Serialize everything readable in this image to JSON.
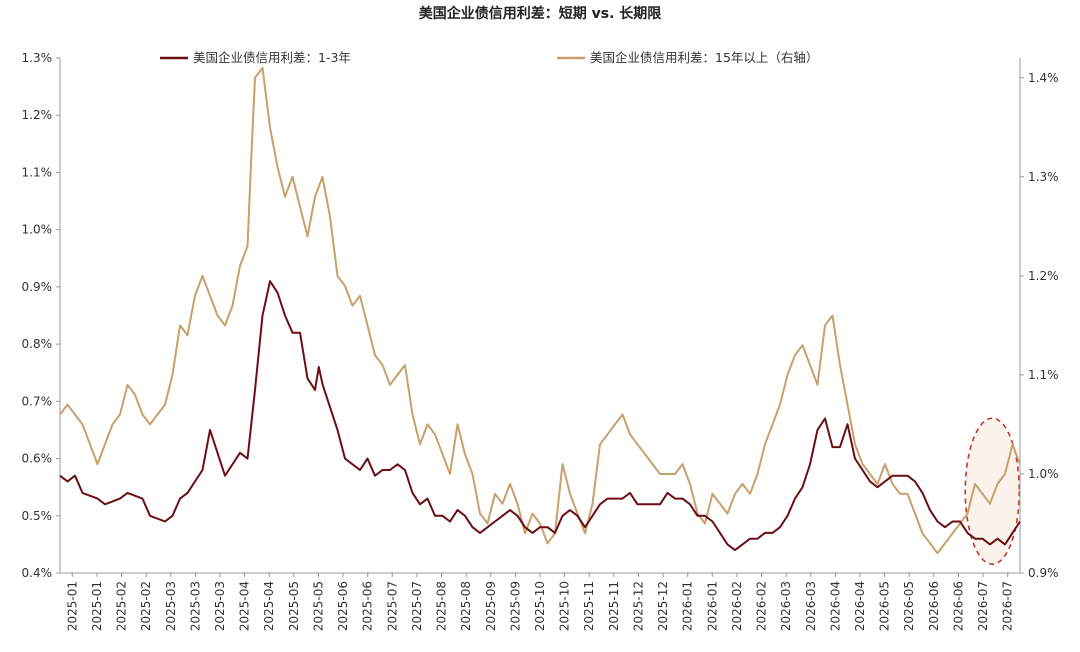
{
  "chart_data": {
    "type": "line",
    "title": "美国企业债信用利差：短期 vs. 长期限",
    "y_left": {
      "ticks": [
        "0.4%",
        "0.5%",
        "0.6%",
        "0.7%",
        "0.8%",
        "0.9%",
        "1.0%",
        "1.1%",
        "1.2%",
        "1.3%"
      ],
      "lim": [
        0.4,
        1.3
      ]
    },
    "y_right": {
      "ticks": [
        "0.9%",
        "1.0%",
        "1.1%",
        "1.2%",
        "1.3%",
        "1.4%"
      ],
      "lim": [
        0.9,
        1.42
      ]
    },
    "x_ticks": [
      "2025-01",
      "2025-01",
      "2025-02",
      "2025-02",
      "2025-03",
      "2025-03",
      "2025-03",
      "2025-04",
      "2025-04",
      "2025-05",
      "2025-05",
      "2025-06",
      "2025-06",
      "2025-07",
      "2025-07",
      "2025-08",
      "2025-08",
      "2025-09",
      "2025-09",
      "2025-10",
      "2025-10",
      "2025-11",
      "2025-11",
      "2025-12",
      "2025-12",
      "2026-01",
      "2026-01",
      "2026-02",
      "2026-02",
      "2026-03",
      "2026-03",
      "2026-04",
      "2026-04",
      "2026-05",
      "2026-05",
      "2026-06",
      "2026-06",
      "2026-07",
      "2026-07"
    ],
    "legend_position": "top",
    "series": [
      {
        "name": "美国企业债信用利差：1-3年",
        "axis": "left",
        "color": "#6b0f14",
        "points": [
          [
            0,
            0.57
          ],
          [
            1,
            0.56
          ],
          [
            2,
            0.57
          ],
          [
            3,
            0.54
          ],
          [
            5,
            0.53
          ],
          [
            6,
            0.52
          ],
          [
            8,
            0.53
          ],
          [
            9,
            0.54
          ],
          [
            11,
            0.53
          ],
          [
            12,
            0.5
          ],
          [
            14,
            0.49
          ],
          [
            15,
            0.5
          ],
          [
            16,
            0.53
          ],
          [
            17,
            0.54
          ],
          [
            18,
            0.56
          ],
          [
            19,
            0.58
          ],
          [
            20,
            0.65
          ],
          [
            21,
            0.61
          ],
          [
            22,
            0.57
          ],
          [
            23,
            0.59
          ],
          [
            24,
            0.61
          ],
          [
            25,
            0.6
          ],
          [
            26,
            0.72
          ],
          [
            27,
            0.85
          ],
          [
            27.5,
            0.88
          ],
          [
            28,
            0.91
          ],
          [
            29,
            0.89
          ],
          [
            30,
            0.85
          ],
          [
            31,
            0.82
          ],
          [
            32,
            0.82
          ],
          [
            33,
            0.74
          ],
          [
            34,
            0.72
          ],
          [
            34.5,
            0.76
          ],
          [
            35,
            0.73
          ],
          [
            36,
            0.69
          ],
          [
            37,
            0.65
          ],
          [
            38,
            0.6
          ],
          [
            39,
            0.59
          ],
          [
            40,
            0.58
          ],
          [
            41,
            0.6
          ],
          [
            42,
            0.57
          ],
          [
            43,
            0.58
          ],
          [
            44,
            0.58
          ],
          [
            45,
            0.59
          ],
          [
            46,
            0.58
          ],
          [
            47,
            0.54
          ],
          [
            48,
            0.52
          ],
          [
            49,
            0.53
          ],
          [
            50,
            0.5
          ],
          [
            51,
            0.5
          ],
          [
            52,
            0.49
          ],
          [
            53,
            0.51
          ],
          [
            54,
            0.5
          ],
          [
            55,
            0.48
          ],
          [
            56,
            0.47
          ],
          [
            57,
            0.48
          ],
          [
            58,
            0.49
          ],
          [
            59,
            0.5
          ],
          [
            60,
            0.51
          ],
          [
            61,
            0.5
          ],
          [
            62,
            0.48
          ],
          [
            63,
            0.47
          ],
          [
            64,
            0.48
          ],
          [
            65,
            0.48
          ],
          [
            66,
            0.47
          ],
          [
            67,
            0.5
          ],
          [
            68,
            0.51
          ],
          [
            69,
            0.5
          ],
          [
            70,
            0.48
          ],
          [
            71,
            0.5
          ],
          [
            72,
            0.52
          ],
          [
            73,
            0.53
          ],
          [
            74,
            0.53
          ],
          [
            75,
            0.53
          ],
          [
            76,
            0.54
          ],
          [
            77,
            0.52
          ],
          [
            78,
            0.52
          ],
          [
            79,
            0.52
          ],
          [
            80,
            0.52
          ],
          [
            81,
            0.54
          ],
          [
            82,
            0.53
          ],
          [
            83,
            0.53
          ],
          [
            84,
            0.52
          ],
          [
            85,
            0.5
          ],
          [
            86,
            0.5
          ],
          [
            87,
            0.49
          ],
          [
            88,
            0.47
          ],
          [
            89,
            0.45
          ],
          [
            90,
            0.44
          ],
          [
            91,
            0.45
          ],
          [
            92,
            0.46
          ],
          [
            93,
            0.46
          ],
          [
            94,
            0.47
          ],
          [
            95,
            0.47
          ],
          [
            96,
            0.48
          ],
          [
            97,
            0.5
          ],
          [
            98,
            0.53
          ],
          [
            99,
            0.55
          ],
          [
            100,
            0.59
          ],
          [
            101,
            0.65
          ],
          [
            102,
            0.67
          ],
          [
            103,
            0.62
          ],
          [
            104,
            0.62
          ],
          [
            105,
            0.66
          ],
          [
            106,
            0.6
          ],
          [
            107,
            0.58
          ],
          [
            108,
            0.56
          ],
          [
            109,
            0.55
          ],
          [
            110,
            0.56
          ],
          [
            111,
            0.57
          ],
          [
            112,
            0.57
          ],
          [
            113,
            0.57
          ],
          [
            114,
            0.56
          ],
          [
            115,
            0.54
          ],
          [
            116,
            0.51
          ],
          [
            117,
            0.49
          ],
          [
            118,
            0.48
          ],
          [
            119,
            0.49
          ],
          [
            120,
            0.49
          ],
          [
            121,
            0.47
          ],
          [
            122,
            0.46
          ],
          [
            123,
            0.46
          ],
          [
            124,
            0.45
          ],
          [
            125,
            0.46
          ],
          [
            126,
            0.45
          ],
          [
            127,
            0.47
          ],
          [
            128,
            0.49
          ]
        ]
      },
      {
        "name": "美国企业债信用利差：15年以上（右轴）",
        "axis": "right",
        "color": "#c8a06a",
        "points": [
          [
            0,
            1.06
          ],
          [
            1,
            1.07
          ],
          [
            2,
            1.06
          ],
          [
            3,
            1.05
          ],
          [
            4,
            1.03
          ],
          [
            5,
            1.01
          ],
          [
            6,
            1.03
          ],
          [
            7,
            1.05
          ],
          [
            8,
            1.06
          ],
          [
            9,
            1.09
          ],
          [
            10,
            1.08
          ],
          [
            11,
            1.06
          ],
          [
            12,
            1.05
          ],
          [
            13,
            1.06
          ],
          [
            14,
            1.07
          ],
          [
            15,
            1.1
          ],
          [
            16,
            1.15
          ],
          [
            17,
            1.14
          ],
          [
            18,
            1.18
          ],
          [
            19,
            1.2
          ],
          [
            20,
            1.18
          ],
          [
            21,
            1.16
          ],
          [
            22,
            1.15
          ],
          [
            23,
            1.17
          ],
          [
            24,
            1.21
          ],
          [
            25,
            1.23
          ],
          [
            25.5,
            1.32
          ],
          [
            26,
            1.4
          ],
          [
            27,
            1.41
          ],
          [
            28,
            1.35
          ],
          [
            29,
            1.31
          ],
          [
            30,
            1.28
          ],
          [
            31,
            1.3
          ],
          [
            32,
            1.27
          ],
          [
            33,
            1.24
          ],
          [
            34,
            1.28
          ],
          [
            35,
            1.3
          ],
          [
            36,
            1.26
          ],
          [
            37,
            1.2
          ],
          [
            38,
            1.19
          ],
          [
            39,
            1.17
          ],
          [
            40,
            1.18
          ],
          [
            41,
            1.15
          ],
          [
            42,
            1.12
          ],
          [
            43,
            1.11
          ],
          [
            44,
            1.09
          ],
          [
            45,
            1.1
          ],
          [
            46,
            1.11
          ],
          [
            47,
            1.06
          ],
          [
            48,
            1.03
          ],
          [
            49,
            1.05
          ],
          [
            50,
            1.04
          ],
          [
            51,
            1.02
          ],
          [
            52,
            1.0
          ],
          [
            53,
            1.05
          ],
          [
            54,
            1.02
          ],
          [
            55,
            1.0
          ],
          [
            56,
            0.96
          ],
          [
            57,
            0.95
          ],
          [
            58,
            0.98
          ],
          [
            59,
            0.97
          ],
          [
            60,
            0.99
          ],
          [
            61,
            0.97
          ],
          [
            62,
            0.94
          ],
          [
            63,
            0.96
          ],
          [
            64,
            0.95
          ],
          [
            65,
            0.93
          ],
          [
            66,
            0.94
          ],
          [
            67,
            1.01
          ],
          [
            68,
            0.98
          ],
          [
            69,
            0.96
          ],
          [
            70,
            0.94
          ],
          [
            71,
            0.97
          ],
          [
            72,
            1.03
          ],
          [
            73,
            1.04
          ],
          [
            74,
            1.05
          ],
          [
            75,
            1.06
          ],
          [
            76,
            1.04
          ],
          [
            77,
            1.03
          ],
          [
            78,
            1.02
          ],
          [
            79,
            1.01
          ],
          [
            80,
            1.0
          ],
          [
            81,
            1.0
          ],
          [
            82,
            1.0
          ],
          [
            83,
            1.01
          ],
          [
            84,
            0.99
          ],
          [
            85,
            0.96
          ],
          [
            86,
            0.95
          ],
          [
            87,
            0.98
          ],
          [
            88,
            0.97
          ],
          [
            89,
            0.96
          ],
          [
            90,
            0.98
          ],
          [
            91,
            0.99
          ],
          [
            92,
            0.98
          ],
          [
            93,
            1.0
          ],
          [
            94,
            1.03
          ],
          [
            95,
            1.05
          ],
          [
            96,
            1.07
          ],
          [
            97,
            1.1
          ],
          [
            98,
            1.12
          ],
          [
            99,
            1.13
          ],
          [
            100,
            1.11
          ],
          [
            101,
            1.09
          ],
          [
            102,
            1.15
          ],
          [
            103,
            1.16
          ],
          [
            104,
            1.11
          ],
          [
            105,
            1.07
          ],
          [
            106,
            1.03
          ],
          [
            107,
            1.01
          ],
          [
            108,
            1.0
          ],
          [
            109,
            0.99
          ],
          [
            110,
            1.01
          ],
          [
            111,
            0.99
          ],
          [
            112,
            0.98
          ],
          [
            113,
            0.98
          ],
          [
            114,
            0.96
          ],
          [
            115,
            0.94
          ],
          [
            116,
            0.93
          ],
          [
            117,
            0.92
          ],
          [
            118,
            0.93
          ],
          [
            119,
            0.94
          ],
          [
            120,
            0.95
          ],
          [
            121,
            0.96
          ],
          [
            122,
            0.99
          ],
          [
            123,
            0.98
          ],
          [
            124,
            0.97
          ],
          [
            125,
            0.99
          ],
          [
            126,
            1.0
          ],
          [
            127,
            1.03
          ],
          [
            128,
            1.01
          ]
        ]
      }
    ],
    "annotation": {
      "type": "ellipse",
      "style": "dashed",
      "color": "#c0392b",
      "fill": "#fbeee6"
    }
  }
}
